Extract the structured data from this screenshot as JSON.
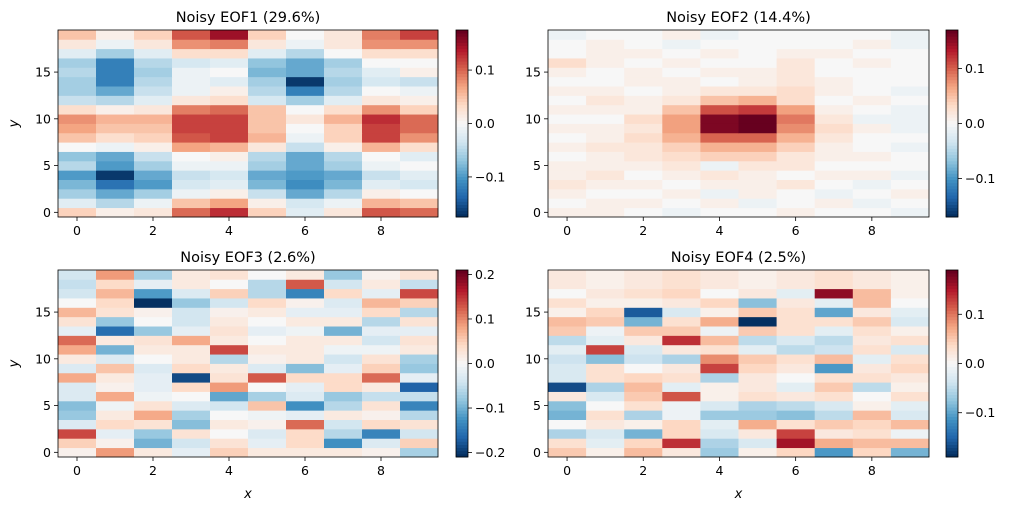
{
  "figure": {
    "colormap": "RdBu_r",
    "colormap_stops": [
      "#053061",
      "#2166ac",
      "#4393c3",
      "#92c5de",
      "#d1e5f0",
      "#f7f7f7",
      "#fddbc7",
      "#f4a582",
      "#d6604d",
      "#b2182b",
      "#67001f"
    ]
  },
  "chart_data": [
    {
      "type": "heatmap",
      "title": "Noisy EOF1 (29.6%)",
      "xlabel": "",
      "ylabel": "y",
      "xlim": [
        -0.5,
        9.5
      ],
      "ylim": [
        -0.5,
        19.5
      ],
      "xticks": [
        0,
        2,
        4,
        6,
        8
      ],
      "yticks": [
        0,
        5,
        10,
        15
      ],
      "colorbar": {
        "vmin": -0.175,
        "vmax": 0.175,
        "ticks": [
          -0.1,
          0.0,
          0.1
        ],
        "tick_labels": [
          "−0.1",
          "0.0",
          "0.1"
        ]
      },
      "values": [
        [
          0.04,
          0.01,
          0.02,
          0.1,
          0.13,
          0.04,
          -0.02,
          0.02,
          0.11,
          0.1
        ],
        [
          -0.02,
          -0.05,
          -0.01,
          0.05,
          0.07,
          0.01,
          -0.03,
          -0.01,
          0.06,
          0.05
        ],
        [
          -0.06,
          -0.09,
          -0.06,
          -0.01,
          0.01,
          -0.04,
          -0.09,
          -0.05,
          0.01,
          0.0
        ],
        [
          -0.08,
          -0.13,
          -0.1,
          -0.03,
          -0.02,
          -0.08,
          -0.11,
          -0.08,
          -0.02,
          -0.03
        ],
        [
          -0.1,
          -0.17,
          -0.09,
          -0.04,
          -0.03,
          -0.09,
          -0.1,
          -0.09,
          -0.04,
          -0.02
        ],
        [
          -0.05,
          -0.1,
          -0.06,
          -0.01,
          -0.01,
          -0.06,
          -0.09,
          -0.06,
          -0.01,
          0.0
        ],
        [
          -0.07,
          -0.09,
          -0.04,
          0.0,
          0.01,
          -0.05,
          -0.09,
          -0.05,
          0.0,
          -0.02
        ],
        [
          0.0,
          -0.01,
          0.01,
          0.07,
          0.06,
          0.02,
          -0.04,
          0.01,
          0.06,
          0.03
        ],
        [
          0.05,
          0.03,
          0.04,
          0.11,
          0.12,
          0.06,
          -0.01,
          0.04,
          0.12,
          0.08
        ],
        [
          0.07,
          0.05,
          0.05,
          0.12,
          0.12,
          0.05,
          0.0,
          0.04,
          0.12,
          0.1
        ],
        [
          0.08,
          0.06,
          0.06,
          0.12,
          0.12,
          0.05,
          0.02,
          0.06,
          0.13,
          0.1
        ],
        [
          0.03,
          0.01,
          0.02,
          0.09,
          0.1,
          0.05,
          0.0,
          0.03,
          0.08,
          0.04
        ],
        [
          -0.04,
          -0.05,
          -0.02,
          0.02,
          0.03,
          -0.03,
          -0.06,
          -0.02,
          0.02,
          0.01
        ],
        [
          -0.06,
          -0.09,
          -0.04,
          -0.01,
          0.01,
          -0.05,
          -0.12,
          -0.05,
          0.0,
          -0.01
        ],
        [
          -0.06,
          -0.12,
          -0.05,
          -0.01,
          -0.02,
          -0.06,
          -0.17,
          -0.06,
          -0.03,
          -0.04
        ],
        [
          -0.05,
          -0.12,
          -0.06,
          -0.01,
          0.0,
          -0.08,
          -0.09,
          -0.05,
          -0.02,
          0.01
        ],
        [
          -0.06,
          -0.12,
          -0.05,
          -0.03,
          -0.02,
          -0.07,
          -0.09,
          -0.06,
          0.0,
          0.0
        ],
        [
          -0.02,
          -0.06,
          -0.02,
          0.03,
          0.03,
          -0.02,
          -0.05,
          0.0,
          0.03,
          0.03
        ],
        [
          0.02,
          -0.01,
          0.02,
          0.08,
          0.09,
          0.02,
          -0.01,
          0.02,
          0.08,
          0.08
        ],
        [
          0.05,
          0.01,
          0.04,
          0.11,
          0.15,
          0.04,
          0.0,
          0.02,
          0.09,
          0.12
        ]
      ]
    },
    {
      "type": "heatmap",
      "title": "Noisy EOF2 (14.4%)",
      "xlabel": "",
      "ylabel": "",
      "xlim": [
        -0.5,
        9.5
      ],
      "ylim": [
        -0.5,
        19.5
      ],
      "xticks": [
        0,
        2,
        4,
        6,
        8
      ],
      "yticks": [
        0,
        5,
        10,
        15
      ],
      "colorbar": {
        "vmin": -0.17,
        "vmax": 0.17,
        "ticks": [
          -0.1,
          0.0,
          0.1
        ],
        "tick_labels": [
          "−0.1",
          "0.0",
          "0.1"
        ]
      },
      "values": [
        [
          0.01,
          0.01,
          0.0,
          -0.01,
          0.0,
          0.0,
          0.01,
          0.0,
          0.0,
          -0.01
        ],
        [
          0.0,
          0.01,
          0.01,
          0.0,
          0.01,
          -0.01,
          0.0,
          0.01,
          -0.01,
          0.0
        ],
        [
          0.01,
          0.0,
          0.0,
          0.01,
          -0.01,
          0.01,
          0.0,
          -0.01,
          0.0,
          0.01
        ],
        [
          0.02,
          0.01,
          0.01,
          0.0,
          0.01,
          0.01,
          0.02,
          0.0,
          -0.01,
          0.0
        ],
        [
          0.01,
          0.02,
          0.0,
          0.01,
          0.02,
          0.01,
          0.0,
          0.01,
          0.01,
          -0.01
        ],
        [
          0.01,
          0.01,
          0.01,
          0.02,
          -0.01,
          0.02,
          0.02,
          0.0,
          0.0,
          0.0
        ],
        [
          0.0,
          0.01,
          0.02,
          0.03,
          0.04,
          0.04,
          0.02,
          0.01,
          0.01,
          0.0
        ],
        [
          0.01,
          0.02,
          0.02,
          0.04,
          0.06,
          0.06,
          0.04,
          0.01,
          0.0,
          -0.01
        ],
        [
          0.0,
          0.01,
          0.03,
          0.06,
          0.1,
          0.1,
          0.06,
          0.02,
          0.0,
          0.0
        ],
        [
          0.01,
          0.01,
          0.02,
          0.07,
          0.16,
          0.17,
          0.08,
          0.03,
          0.01,
          -0.01
        ],
        [
          0.0,
          0.0,
          0.03,
          0.07,
          0.16,
          0.18,
          0.09,
          0.02,
          -0.01,
          -0.01
        ],
        [
          0.01,
          0.01,
          0.01,
          0.05,
          0.11,
          0.12,
          0.07,
          0.01,
          0.0,
          -0.01
        ],
        [
          0.0,
          0.02,
          0.01,
          0.02,
          0.05,
          0.06,
          0.03,
          0.0,
          0.01,
          0.0
        ],
        [
          0.01,
          0.01,
          0.0,
          0.01,
          0.02,
          0.02,
          0.03,
          0.01,
          0.0,
          -0.01
        ],
        [
          0.0,
          0.0,
          0.01,
          0.01,
          0.0,
          0.01,
          0.02,
          0.01,
          0.0,
          0.0
        ],
        [
          0.01,
          0.0,
          0.01,
          0.0,
          0.01,
          0.01,
          0.02,
          0.0,
          0.0,
          0.0
        ],
        [
          0.03,
          0.01,
          0.0,
          0.01,
          0.0,
          0.0,
          0.02,
          0.0,
          0.01,
          0.0
        ],
        [
          0.0,
          0.01,
          0.01,
          0.0,
          0.01,
          0.0,
          0.01,
          0.01,
          0.0,
          0.0
        ],
        [
          0.0,
          0.01,
          0.0,
          -0.01,
          0.0,
          0.0,
          0.0,
          0.0,
          0.01,
          -0.01
        ],
        [
          -0.01,
          0.0,
          0.0,
          0.01,
          -0.01,
          0.0,
          0.0,
          0.0,
          0.0,
          -0.01
        ]
      ]
    },
    {
      "type": "heatmap",
      "title": "Noisy EOF3 (2.6%)",
      "xlabel": "x",
      "ylabel": "y",
      "xlim": [
        -0.5,
        9.5
      ],
      "ylim": [
        -0.5,
        19.5
      ],
      "xticks": [
        0,
        2,
        4,
        6,
        8
      ],
      "yticks": [
        0,
        5,
        10,
        15
      ],
      "colorbar": {
        "vmin": -0.21,
        "vmax": 0.21,
        "ticks": [
          -0.2,
          -0.1,
          0.0,
          0.1,
          0.2
        ],
        "tick_labels": [
          "−0.2",
          "−0.1",
          "0.0",
          "0.1",
          "0.2"
        ]
      },
      "values": [
        [
          0.01,
          0.09,
          0.02,
          -0.02,
          0.05,
          0.02,
          0.02,
          0.02,
          0.01,
          -0.07
        ],
        [
          0.05,
          0.01,
          -0.1,
          -0.04,
          0.03,
          -0.02,
          0.04,
          -0.13,
          -0.03,
          0.05
        ],
        [
          0.14,
          -0.02,
          -0.08,
          0.03,
          0.0,
          -0.03,
          0.04,
          -0.06,
          -0.14,
          -0.04
        ],
        [
          -0.03,
          0.04,
          0.03,
          -0.09,
          0.02,
          0.01,
          0.12,
          -0.04,
          0.04,
          0.03
        ],
        [
          -0.08,
          0.02,
          0.08,
          -0.07,
          0.0,
          -0.01,
          -0.02,
          0.02,
          0.01,
          -0.06
        ],
        [
          -0.09,
          -0.01,
          0.03,
          -0.03,
          -0.04,
          0.06,
          -0.13,
          -0.06,
          0.03,
          -0.14
        ],
        [
          -0.03,
          0.08,
          -0.01,
          0.0,
          -0.11,
          -0.07,
          -0.03,
          -0.08,
          -0.05,
          -0.05
        ],
        [
          -0.03,
          0.01,
          -0.02,
          0.04,
          0.09,
          0.0,
          -0.02,
          0.04,
          0.02,
          -0.17
        ],
        [
          0.08,
          0.02,
          -0.02,
          -0.19,
          0.03,
          0.13,
          0.04,
          0.04,
          0.12,
          -0.02
        ],
        [
          -0.03,
          0.06,
          -0.03,
          0.04,
          0.02,
          -0.03,
          -0.09,
          -0.02,
          0.05,
          -0.08
        ],
        [
          0.02,
          -0.03,
          0.0,
          0.02,
          -0.06,
          0.01,
          0.02,
          -0.04,
          0.03,
          -0.07
        ],
        [
          0.08,
          -0.1,
          0.02,
          0.02,
          0.14,
          0.02,
          0.02,
          -0.01,
          -0.01,
          0.02
        ],
        [
          0.12,
          0.02,
          0.03,
          0.08,
          0.02,
          0.0,
          0.02,
          0.02,
          -0.04,
          0.03
        ],
        [
          -0.02,
          -0.16,
          -0.08,
          -0.02,
          0.03,
          -0.02,
          -0.01,
          -0.1,
          -0.02,
          -0.02
        ],
        [
          0.03,
          -0.08,
          0.0,
          -0.04,
          0.02,
          0.0,
          0.02,
          0.02,
          -0.06,
          0.03
        ],
        [
          0.07,
          0.03,
          0.01,
          -0.04,
          0.01,
          0.02,
          -0.02,
          -0.02,
          0.04,
          -0.06
        ],
        [
          0.0,
          0.04,
          -0.21,
          -0.08,
          -0.04,
          0.04,
          0.01,
          -0.03,
          0.07,
          0.05
        ],
        [
          -0.04,
          0.07,
          -0.12,
          -0.03,
          0.05,
          -0.06,
          -0.14,
          0.04,
          -0.02,
          0.14
        ],
        [
          -0.05,
          0.04,
          -0.02,
          0.02,
          0.0,
          -0.06,
          0.13,
          -0.04,
          0.02,
          -0.05
        ],
        [
          -0.04,
          0.09,
          -0.07,
          0.02,
          0.03,
          0.0,
          0.02,
          -0.08,
          0.01,
          0.03
        ]
      ]
    },
    {
      "type": "heatmap",
      "title": "Noisy EOF4 (2.5%)",
      "xlabel": "x",
      "ylabel": "",
      "xlim": [
        -0.5,
        9.5
      ],
      "ylim": [
        -0.5,
        19.5
      ],
      "xticks": [
        0,
        2,
        4,
        6,
        8
      ],
      "yticks": [
        0,
        5,
        10,
        15
      ],
      "colorbar": {
        "vmin": -0.19,
        "vmax": 0.19,
        "ticks": [
          -0.1,
          0.0,
          0.1
        ],
        "tick_labels": [
          "−0.1",
          "0.0",
          "0.1"
        ]
      },
      "values": [
        [
          0.05,
          0.01,
          0.06,
          0.02,
          -0.07,
          0.01,
          0.04,
          -0.11,
          0.04,
          -0.09
        ],
        [
          0.03,
          -0.02,
          0.04,
          0.14,
          -0.06,
          -0.03,
          0.16,
          0.07,
          0.06,
          0.06
        ],
        [
          -0.06,
          -0.03,
          -0.09,
          0.04,
          -0.03,
          0.02,
          0.13,
          0.02,
          0.03,
          -0.01
        ],
        [
          0.0,
          0.02,
          0.01,
          0.04,
          -0.02,
          0.07,
          0.03,
          0.05,
          0.04,
          0.06
        ],
        [
          -0.09,
          0.03,
          -0.06,
          -0.01,
          -0.07,
          -0.07,
          -0.08,
          -0.05,
          0.06,
          -0.03
        ],
        [
          -0.08,
          0.0,
          0.03,
          -0.01,
          -0.03,
          -0.06,
          -0.05,
          -0.03,
          0.01,
          -0.02
        ],
        [
          0.02,
          -0.03,
          0.05,
          0.12,
          0.01,
          0.03,
          0.02,
          0.03,
          0.0,
          0.03
        ],
        [
          -0.17,
          -0.06,
          0.06,
          -0.02,
          0.01,
          0.02,
          -0.02,
          0.05,
          -0.05,
          0.01
        ],
        [
          -0.03,
          0.03,
          0.04,
          0.03,
          -0.06,
          0.02,
          0.0,
          0.03,
          0.03,
          0.02
        ],
        [
          -0.03,
          0.03,
          0.0,
          0.02,
          0.13,
          0.04,
          0.02,
          -0.11,
          0.02,
          0.04
        ],
        [
          -0.04,
          -0.08,
          -0.04,
          -0.06,
          0.09,
          0.05,
          0.03,
          0.06,
          -0.02,
          0.03
        ],
        [
          -0.02,
          0.13,
          -0.03,
          0.02,
          0.03,
          -0.02,
          -0.05,
          -0.04,
          0.03,
          -0.03
        ],
        [
          -0.05,
          -0.02,
          0.02,
          0.14,
          0.06,
          -0.05,
          -0.03,
          -0.05,
          0.02,
          0.03
        ],
        [
          0.05,
          -0.01,
          0.05,
          0.05,
          -0.01,
          0.05,
          0.03,
          -0.02,
          0.03,
          0.01
        ],
        [
          0.06,
          0.05,
          -0.09,
          0.03,
          0.07,
          -0.19,
          0.03,
          0.03,
          0.05,
          -0.03
        ],
        [
          0.01,
          0.04,
          -0.16,
          -0.03,
          0.01,
          0.05,
          0.03,
          -0.1,
          0.02,
          -0.02
        ],
        [
          0.03,
          0.01,
          0.01,
          0.02,
          0.04,
          -0.08,
          0.02,
          -0.02,
          0.06,
          0.0
        ],
        [
          0.0,
          0.02,
          0.03,
          0.04,
          0.0,
          0.02,
          -0.02,
          0.17,
          0.06,
          0.01
        ],
        [
          0.02,
          0.01,
          0.02,
          0.03,
          0.02,
          0.01,
          0.02,
          0.03,
          0.02,
          0.01
        ],
        [
          0.02,
          0.01,
          0.02,
          0.03,
          0.02,
          0.01,
          0.02,
          0.03,
          0.02,
          0.01
        ]
      ]
    }
  ]
}
